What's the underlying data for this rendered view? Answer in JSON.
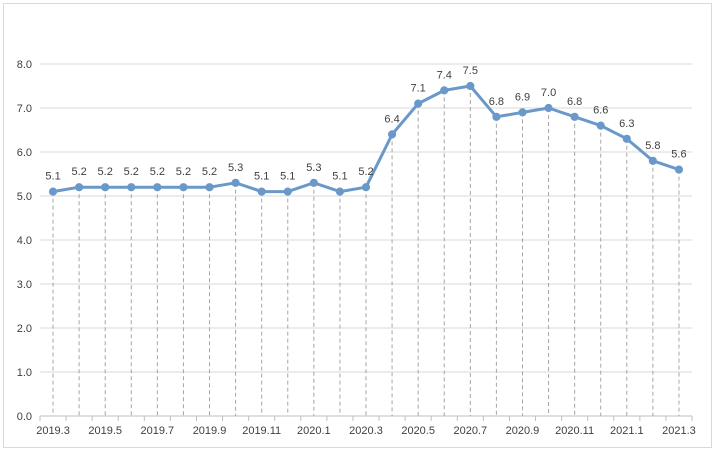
{
  "chart_data": {
    "type": "line",
    "title": "",
    "xlabel": "",
    "ylabel": "",
    "ylim": [
      0,
      8
    ],
    "yticks": [
      "0.0",
      "1.0",
      "2.0",
      "3.0",
      "4.0",
      "5.0",
      "6.0",
      "7.0",
      "8.0"
    ],
    "grid": "horizontal",
    "drop_lines": true,
    "x": [
      "2019.3",
      "2019.4",
      "2019.5",
      "2019.6",
      "2019.7",
      "2019.8",
      "2019.9",
      "2019.10",
      "2019.11",
      "2019.12",
      "2020.1",
      "2020.2",
      "2020.3",
      "2020.4",
      "2020.5",
      "2020.6",
      "2020.7",
      "2020.8",
      "2020.9",
      "2020.10",
      "2020.11",
      "2020.12",
      "2021.1",
      "2021.2",
      "2021.3"
    ],
    "x_tick_labels": [
      "2019.3",
      "",
      "2019.5",
      "",
      "2019.7",
      "",
      "2019.9",
      "",
      "2019.11",
      "",
      "2020.1",
      "",
      "2020.3",
      "",
      "2020.5",
      "",
      "2020.7",
      "",
      "2020.9",
      "",
      "2020.11",
      "",
      "2021.1",
      "",
      "2021.3"
    ],
    "series": [
      {
        "values": [
          5.1,
          5.2,
          5.2,
          5.2,
          5.2,
          5.2,
          5.2,
          5.3,
          5.1,
          5.1,
          5.3,
          5.1,
          5.2,
          6.4,
          7.1,
          7.4,
          7.5,
          6.8,
          6.9,
          7.0,
          6.8,
          6.6,
          6.3,
          5.8,
          5.6
        ],
        "labels": [
          "5.1",
          "5.2",
          "5.2",
          "5.2",
          "5.2",
          "5.2",
          "5.2",
          "5.3",
          "5.1",
          "5.1",
          "5.3",
          "5.1",
          "5.2",
          "6.4",
          "7.1",
          "7.4",
          "7.5",
          "6.8",
          "6.9",
          "7.0",
          "6.8",
          "6.6",
          "6.3",
          "5.8",
          "5.6"
        ],
        "color": "#6a99c9"
      }
    ]
  }
}
